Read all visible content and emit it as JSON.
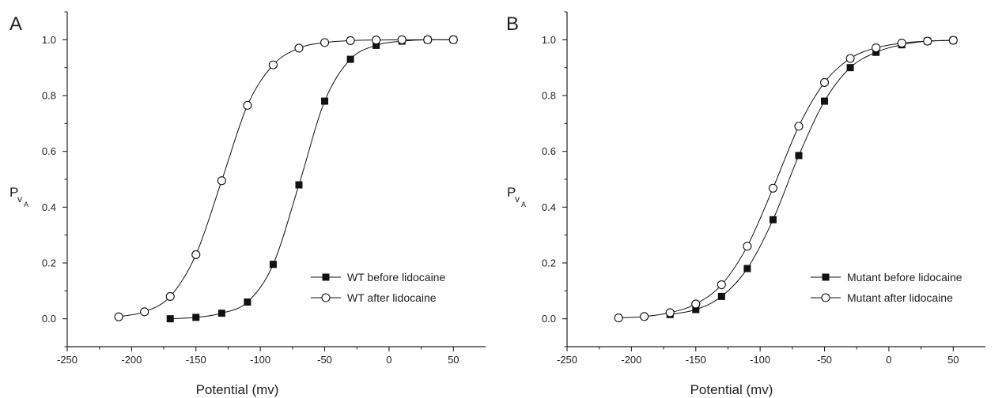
{
  "chart_data": [
    {
      "panel": "A",
      "type": "scatter",
      "xlabel": "Potential (mv)",
      "ylabel": "P_vA",
      "xlim": [
        -250,
        75
      ],
      "ylim": [
        -0.1,
        1.1
      ],
      "xticks": [
        -250,
        -200,
        -150,
        -100,
        -50,
        0,
        50
      ],
      "yticks": [
        0.0,
        0.2,
        0.4,
        0.6,
        0.8,
        1.0
      ],
      "xtick_labels": [
        "-250",
        "-200",
        "-150",
        "-100",
        "-50",
        "0",
        "50"
      ],
      "ytick_labels": [
        "0.0",
        "0.2",
        "0.4",
        "0.6",
        "0.8",
        "1.0"
      ],
      "legend_position": "lower-right",
      "series": [
        {
          "name": "WT before lidocaine",
          "marker": "filled-square",
          "x": [
            -170,
            -150,
            -130,
            -110,
            -90,
            -70,
            -50,
            -30,
            -10,
            10,
            30,
            50
          ],
          "y": [
            0.0,
            0.005,
            0.02,
            0.06,
            0.195,
            0.48,
            0.78,
            0.93,
            0.98,
            0.995,
            1.0,
            1.0
          ]
        },
        {
          "name": "WT after lidocaine",
          "marker": "open-circle",
          "x": [
            -210,
            -190,
            -170,
            -150,
            -130,
            -110,
            -90,
            -70,
            -50,
            -30,
            -10,
            10,
            30,
            50
          ],
          "y": [
            0.007,
            0.025,
            0.08,
            0.23,
            0.495,
            0.765,
            0.91,
            0.97,
            0.99,
            0.997,
            0.999,
            1.0,
            1.0,
            1.0
          ]
        }
      ]
    },
    {
      "panel": "B",
      "type": "scatter",
      "xlabel": "Potential (mv)",
      "ylabel": "P_vA",
      "xlim": [
        -250,
        75
      ],
      "ylim": [
        -0.1,
        1.1
      ],
      "xticks": [
        -250,
        -200,
        -150,
        -100,
        -50,
        0,
        50
      ],
      "yticks": [
        0.0,
        0.2,
        0.4,
        0.6,
        0.8,
        1.0
      ],
      "xtick_labels": [
        "-250",
        "-200",
        "-150",
        "-100",
        "-50",
        "0",
        "50"
      ],
      "ytick_labels": [
        "0.0",
        "0.2",
        "0.4",
        "0.6",
        "0.8",
        "1.0"
      ],
      "legend_position": "lower-right",
      "series": [
        {
          "name": "Mutant before lidocaine",
          "marker": "filled-square",
          "x": [
            -170,
            -150,
            -130,
            -110,
            -90,
            -70,
            -50,
            -30,
            -10,
            10,
            30,
            50
          ],
          "y": [
            0.015,
            0.033,
            0.08,
            0.18,
            0.355,
            0.585,
            0.78,
            0.9,
            0.955,
            0.982,
            0.995,
            0.998
          ]
        },
        {
          "name": "Mutant after lidocaine",
          "marker": "open-circle",
          "x": [
            -210,
            -190,
            -170,
            -150,
            -130,
            -110,
            -90,
            -70,
            -50,
            -30,
            -10,
            10,
            30,
            50
          ],
          "y": [
            0.003,
            0.008,
            0.022,
            0.053,
            0.122,
            0.26,
            0.468,
            0.69,
            0.847,
            0.933,
            0.971,
            0.988,
            0.995,
            0.998
          ]
        }
      ]
    }
  ],
  "colors": {
    "axis": "#222222",
    "marker": "#111111",
    "line": "#111111"
  }
}
